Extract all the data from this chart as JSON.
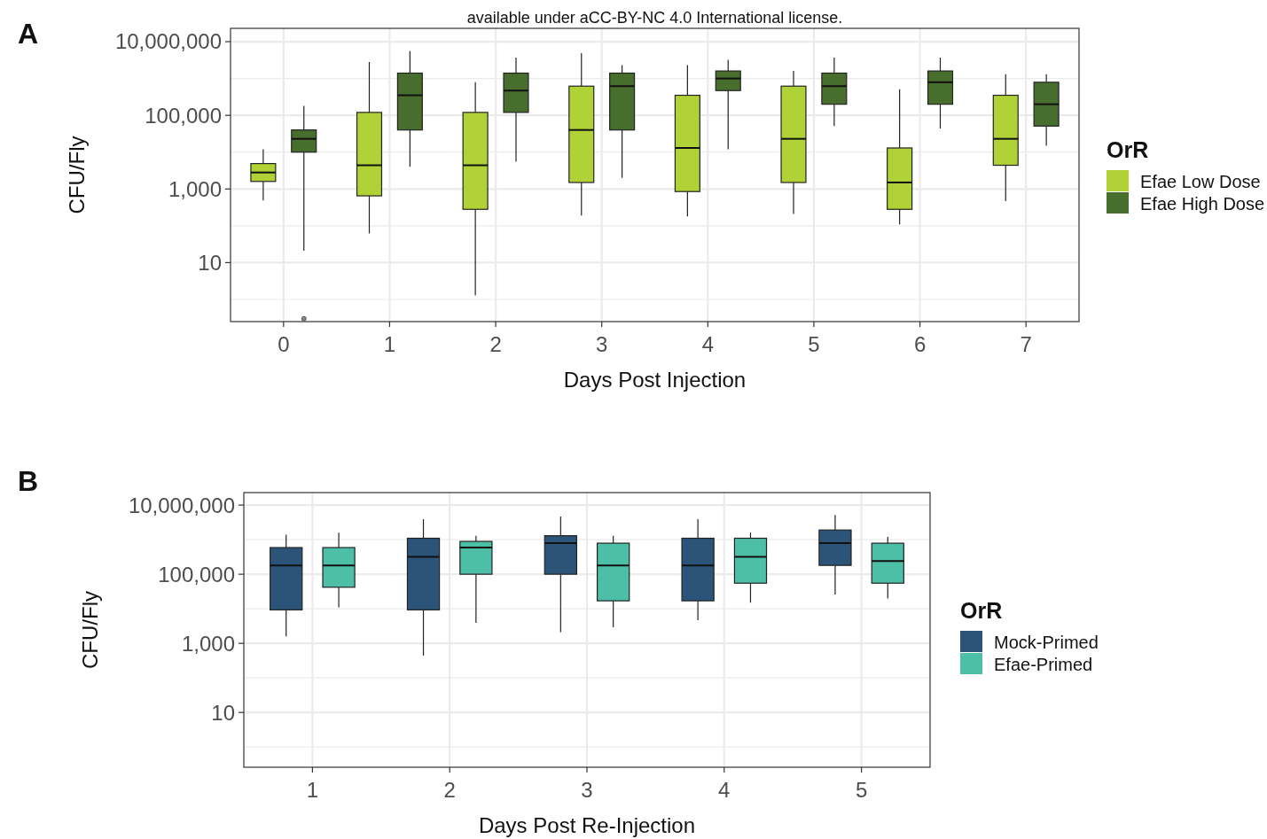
{
  "chart_data": [
    {
      "type": "box",
      "title": "A",
      "annotations": [
        "available under aCC-BY-NC 4.0 International license."
      ],
      "xlabel": "Days Post Injection",
      "ylabel": "CFU/Fly",
      "legend_title": "OrR",
      "legend": "right",
      "grid": true,
      "log": "y",
      "categories": [
        "0",
        "1",
        "2",
        "3",
        "4",
        "5",
        "6",
        "7"
      ],
      "ylim": [
        0.25,
        23000000
      ],
      "yticks": [
        {
          "value": 1,
          "label": null
        },
        10,
        {
          "value": 100,
          "label": null
        },
        {
          "value": 1000,
          "label": "1,000"
        },
        {
          "value": 10000,
          "label": null
        },
        {
          "value": 100000,
          "label": "100,000"
        },
        {
          "value": 1000000,
          "label": null
        },
        {
          "value": 10000000,
          "label": "10,000,000"
        }
      ],
      "series": [
        {
          "name": "Efae Low Dose",
          "color": "#b0d236",
          "boxes": [
            {
              "low": 490,
              "q1": 1600,
              "median": 2800,
              "q3": 4900,
              "high": 12000
            },
            {
              "low": 62,
              "q1": 650,
              "median": 4400,
              "q3": 120000,
              "high": 2800000
            },
            {
              "low": 1.3,
              "q1": 280,
              "median": 4400,
              "q3": 120000,
              "high": 790000
            },
            {
              "low": 190,
              "q1": 1500,
              "median": 40000,
              "q3": 620000,
              "high": 4900000
            },
            {
              "low": 180,
              "q1": 850,
              "median": 13000,
              "q3": 350000,
              "high": 2300000
            },
            {
              "low": 210,
              "q1": 1500,
              "median": 23000,
              "q3": 620000,
              "high": 1600000
            },
            {
              "low": 110,
              "q1": 280,
              "median": 1500,
              "q3": 13000,
              "high": 510000
            },
            {
              "low": 470,
              "q1": 4400,
              "median": 23000,
              "q3": 350000,
              "high": 1300000
            }
          ]
        },
        {
          "name": "Efae High Dose",
          "color": "#476e2d",
          "boxes": [
            {
              "low": 21,
              "q1": 10000,
              "median": 23000,
              "q3": 40000,
              "high": 180000,
              "outliers": [
                0.3
              ]
            },
            {
              "low": 4000,
              "q1": 40000,
              "median": 350000,
              "q3": 1400000,
              "high": 5500000
            },
            {
              "low": 5500,
              "q1": 120000,
              "median": 470000,
              "q3": 1400000,
              "high": 3700000
            },
            {
              "low": 2000,
              "q1": 40000,
              "median": 620000,
              "q3": 1400000,
              "high": 2300000
            },
            {
              "low": 12000,
              "q1": 470000,
              "median": 1000000,
              "q3": 1600000,
              "high": 3200000
            },
            {
              "low": 51000,
              "q1": 200000,
              "median": 620000,
              "q3": 1400000,
              "high": 3700000
            },
            {
              "low": 44000,
              "q1": 200000,
              "median": 790000,
              "q3": 1600000,
              "high": 3700000
            },
            {
              "low": 15000,
              "q1": 51000,
              "median": 200000,
              "q3": 790000,
              "high": 1300000
            }
          ]
        }
      ]
    },
    {
      "type": "box",
      "title": "B",
      "xlabel": "Days Post Re-Injection",
      "ylabel": "CFU/Fly",
      "legend_title": "OrR",
      "legend": "right",
      "grid": true,
      "log": "y",
      "categories": [
        "1",
        "2",
        "3",
        "4",
        "5"
      ],
      "ylim": [
        0.26,
        23000000
      ],
      "yticks": [
        {
          "value": 1,
          "label": null
        },
        10,
        {
          "value": 100,
          "label": null
        },
        {
          "value": 1000,
          "label": "1,000"
        },
        {
          "value": 10000,
          "label": null
        },
        {
          "value": 100000,
          "label": "100,000"
        },
        {
          "value": 1000000,
          "label": null
        },
        {
          "value": 10000000,
          "label": "10,000,000"
        }
      ],
      "series": [
        {
          "name": "Mock-Primed",
          "color": "#2b5478",
          "boxes": [
            {
              "low": 1600,
              "q1": 9300,
              "median": 180000,
              "q3": 590000,
              "high": 1400000
            },
            {
              "low": 440,
              "q1": 9300,
              "median": 320000,
              "q3": 1100000,
              "high": 3900000
            },
            {
              "low": 2100,
              "q1": 100000,
              "median": 790000,
              "q3": 1300000,
              "high": 4700000
            },
            {
              "low": 4700,
              "q1": 17000,
              "median": 180000,
              "q3": 1100000,
              "high": 3900000
            },
            {
              "low": 26000,
              "q1": 180000,
              "median": 790000,
              "q3": 1900000,
              "high": 5200000
            }
          ]
        },
        {
          "name": "Efae-Primed",
          "color": "#4dbfa7",
          "boxes": [
            {
              "low": 11000,
              "q1": 42000,
              "median": 180000,
              "q3": 590000,
              "high": 1600000
            },
            {
              "low": 3900,
              "q1": 100000,
              "median": 590000,
              "q3": 890000,
              "high": 1300000
            },
            {
              "low": 2900,
              "q1": 17000,
              "median": 180000,
              "q3": 790000,
              "high": 1300000
            },
            {
              "low": 15000,
              "q1": 55000,
              "median": 320000,
              "q3": 1100000,
              "high": 1600000
            },
            {
              "low": 20000,
              "q1": 55000,
              "median": 240000,
              "q3": 790000,
              "high": 1200000
            }
          ]
        }
      ]
    }
  ]
}
